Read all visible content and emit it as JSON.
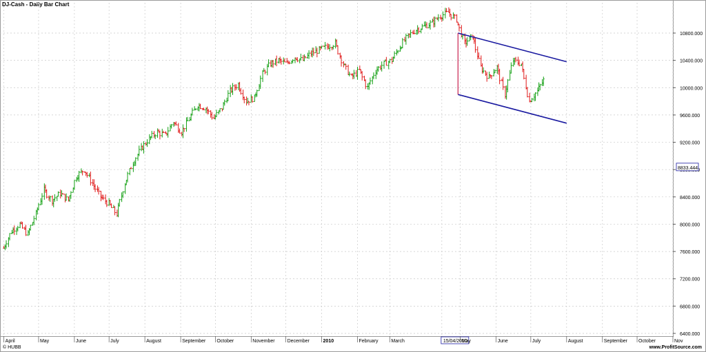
{
  "header": {
    "title": "DJ-Cash - Daily Bar Chart"
  },
  "footer": {
    "left": "© HUBB",
    "right": "www.ProfitSource.com"
  },
  "colors": {
    "up": "#14a014",
    "down": "#e01a1a",
    "channel": "#1a1aa0",
    "marker": "#c8204e",
    "grid": "#c8c8c8"
  },
  "chart_data": {
    "type": "bar",
    "title": "DJ-Cash - Daily Bar Chart",
    "xlabel": "",
    "ylabel": "",
    "ylim": [
      6400,
      11300
    ],
    "grid": true,
    "current_value_label": "8833.444",
    "y_ticks": [
      "10800.000",
      "10400.000",
      "10000.000",
      "9600.000",
      "9200.000",
      "8800.000",
      "8400.000",
      "8000.000",
      "7600.000",
      "7200.000",
      "6800.000",
      "6400.000"
    ],
    "x_tick_labels": [
      "April",
      "May",
      "June",
      "July",
      "August",
      "September",
      "October",
      "November",
      "December",
      "2010",
      "February",
      "March",
      "15/04/2010",
      "May",
      "June",
      "July",
      "August",
      "September",
      "October",
      "Nov"
    ],
    "highlighted_date": "15/04/2010",
    "price_path_monthly_close": [
      {
        "month": "Apr 2009",
        "close": 8100
      },
      {
        "month": "May 2009",
        "close": 8500
      },
      {
        "month": "Jun 2009",
        "close": 8450
      },
      {
        "month": "Jul 2009",
        "close": 9170
      },
      {
        "month": "Aug 2009",
        "close": 9500
      },
      {
        "month": "Sep 2009",
        "close": 9700
      },
      {
        "month": "Oct 2009",
        "close": 9710
      },
      {
        "month": "Nov 2009",
        "close": 10340
      },
      {
        "month": "Dec 2009",
        "close": 10430
      },
      {
        "month": "Jan 2010",
        "close": 10070
      },
      {
        "month": "Feb 2010",
        "close": 10320
      },
      {
        "month": "Mar 2010",
        "close": 10860
      },
      {
        "month": "Apr 2010",
        "close": 11010
      },
      {
        "month": "May 2010",
        "close": 10140
      },
      {
        "month": "Jun 2010",
        "close": 9780
      },
      {
        "month": "Jul 2010",
        "close": 10150
      }
    ],
    "series": [
      {
        "name": "",
        "points": [
          [
            "2009-04-01",
            7650
          ],
          [
            "2009-04-08",
            7900
          ],
          [
            "2009-04-15",
            8000
          ],
          [
            "2009-04-22",
            7850
          ],
          [
            "2009-04-29",
            8150
          ],
          [
            "2009-05-06",
            8500
          ],
          [
            "2009-05-13",
            8350
          ],
          [
            "2009-05-20",
            8450
          ],
          [
            "2009-05-27",
            8350
          ],
          [
            "2009-06-03",
            8700
          ],
          [
            "2009-06-10",
            8800
          ],
          [
            "2009-06-17",
            8600
          ],
          [
            "2009-06-24",
            8400
          ],
          [
            "2009-07-01",
            8300
          ],
          [
            "2009-07-08",
            8150
          ],
          [
            "2009-07-15",
            8600
          ],
          [
            "2009-07-22",
            8900
          ],
          [
            "2009-07-29",
            9100
          ],
          [
            "2009-08-05",
            9250
          ],
          [
            "2009-08-12",
            9350
          ],
          [
            "2009-08-19",
            9300
          ],
          [
            "2009-08-26",
            9500
          ],
          [
            "2009-09-02",
            9350
          ],
          [
            "2009-09-09",
            9550
          ],
          [
            "2009-09-16",
            9750
          ],
          [
            "2009-09-23",
            9700
          ],
          [
            "2009-09-30",
            9550
          ],
          [
            "2009-10-07",
            9700
          ],
          [
            "2009-10-14",
            9950
          ],
          [
            "2009-10-21",
            10050
          ],
          [
            "2009-10-28",
            9800
          ],
          [
            "2009-11-04",
            9850
          ],
          [
            "2009-11-11",
            10200
          ],
          [
            "2009-11-18",
            10350
          ],
          [
            "2009-11-25",
            10400
          ],
          [
            "2009-12-02",
            10350
          ],
          [
            "2009-12-09",
            10450
          ],
          [
            "2009-12-16",
            10400
          ],
          [
            "2009-12-23",
            10500
          ],
          [
            "2009-12-30",
            10550
          ],
          [
            "2010-01-06",
            10600
          ],
          [
            "2010-01-13",
            10650
          ],
          [
            "2010-01-20",
            10350
          ],
          [
            "2010-01-27",
            10150
          ],
          [
            "2010-02-03",
            10250
          ],
          [
            "2010-02-10",
            10000
          ],
          [
            "2010-02-17",
            10250
          ],
          [
            "2010-02-24",
            10350
          ],
          [
            "2010-03-03",
            10400
          ],
          [
            "2010-03-10",
            10600
          ],
          [
            "2010-03-17",
            10750
          ],
          [
            "2010-03-24",
            10850
          ],
          [
            "2010-03-31",
            10900
          ],
          [
            "2010-04-07",
            10950
          ],
          [
            "2010-04-14",
            11050
          ],
          [
            "2010-04-21",
            11100
          ],
          [
            "2010-04-28",
            11000
          ],
          [
            "2010-05-05",
            10650
          ],
          [
            "2010-05-12",
            10750
          ],
          [
            "2010-05-19",
            10300
          ],
          [
            "2010-05-26",
            10150
          ],
          [
            "2010-06-02",
            10300
          ],
          [
            "2010-06-09",
            9900
          ],
          [
            "2010-06-16",
            10400
          ],
          [
            "2010-06-23",
            10350
          ],
          [
            "2010-06-30",
            9800
          ],
          [
            "2010-07-07",
            9950
          ],
          [
            "2010-07-14",
            10150
          ]
        ]
      }
    ],
    "channel_lines": [
      {
        "name": "upper",
        "from": [
          "2010-04-29",
          10800
        ],
        "to": [
          "2010-08-01",
          10380
        ]
      },
      {
        "name": "lower",
        "from": [
          "2010-04-29",
          9900
        ],
        "to": [
          "2010-08-01",
          9480
        ]
      }
    ]
  }
}
